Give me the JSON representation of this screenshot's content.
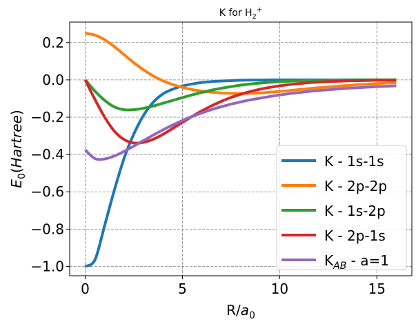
{
  "chart_data": {
    "type": "line",
    "title_main": "K for H",
    "title_sub": "2",
    "title_sup": "+",
    "xlabel_main": "R/",
    "xlabel_var": "a",
    "xlabel_sub": "0",
    "ylabel_var": "E",
    "ylabel_sub": "0",
    "ylabel_paren_open": "(",
    "ylabel_unit": "Hartree",
    "ylabel_paren_close": ")",
    "xlim": [
      -0.8,
      16.8
    ],
    "ylim": [
      -1.05,
      0.31
    ],
    "grid": true,
    "legend_position": "lower-right",
    "xticks": [
      0,
      5,
      10,
      15
    ],
    "xtick_labels": [
      "0",
      "5",
      "10",
      "15"
    ],
    "yticks": [
      -1.0,
      -0.8,
      -0.6,
      -0.4,
      -0.2,
      0.0,
      0.2
    ],
    "ytick_labels": [
      "−1.0",
      "−0.8",
      "−0.6",
      "−0.4",
      "−0.2",
      "0.0",
      "0.2"
    ],
    "x": [
      0,
      0.5,
      1,
      1.5,
      2,
      2.5,
      3,
      3.5,
      4,
      4.5,
      5,
      5.5,
      6,
      6.5,
      7,
      7.5,
      8,
      8.5,
      9,
      9.5,
      10,
      10.5,
      11,
      11.5,
      12,
      12.5,
      13,
      13.5,
      14,
      14.5,
      15,
      15.5,
      16
    ],
    "series": [
      {
        "name": "K - 1s-1s",
        "legend_main": "K - 1s-1s",
        "legend_sub": "",
        "legend_suffix": "",
        "color": "#1f77b4",
        "values": [
          -1.0,
          -0.965,
          -0.78,
          -0.59,
          -0.42,
          -0.29,
          -0.19,
          -0.12,
          -0.075,
          -0.05,
          -0.033,
          -0.022,
          -0.014,
          -0.009,
          -0.006,
          -0.004,
          -0.002,
          -0.001,
          -0.001,
          0.0,
          0.0,
          0.0,
          0.0,
          0.0,
          0.0,
          0.0,
          0.0,
          0.0,
          0.0,
          0.0,
          0.0,
          0.0,
          0.0
        ]
      },
      {
        "name": "K - 2p-2p",
        "legend_main": "K - 2p-2p",
        "legend_sub": "",
        "legend_suffix": "",
        "color": "#ff7f0e",
        "values": [
          0.25,
          0.24,
          0.215,
          0.178,
          0.135,
          0.092,
          0.054,
          0.021,
          -0.005,
          -0.025,
          -0.04,
          -0.052,
          -0.06,
          -0.066,
          -0.07,
          -0.072,
          -0.073,
          -0.072,
          -0.07,
          -0.066,
          -0.062,
          -0.057,
          -0.052,
          -0.047,
          -0.042,
          -0.038,
          -0.034,
          -0.03,
          -0.026,
          -0.023,
          -0.02,
          -0.017,
          -0.015
        ]
      },
      {
        "name": "K - 1s-2p",
        "legend_main": "K - 1s-2p",
        "legend_sub": "",
        "legend_suffix": "",
        "color": "#2ca02c",
        "values": [
          0.0,
          -0.06,
          -0.11,
          -0.145,
          -0.16,
          -0.16,
          -0.152,
          -0.14,
          -0.125,
          -0.11,
          -0.095,
          -0.08,
          -0.067,
          -0.055,
          -0.045,
          -0.036,
          -0.028,
          -0.022,
          -0.017,
          -0.013,
          -0.01,
          -0.007,
          -0.005,
          -0.004,
          -0.003,
          -0.002,
          -0.001,
          -0.001,
          0.0,
          0.0,
          0.0,
          0.0,
          0.0
        ]
      },
      {
        "name": "K - 2p-1s",
        "legend_main": "K - 2p-1s",
        "legend_sub": "",
        "legend_suffix": "",
        "color": "#d62728",
        "values": [
          0.0,
          -0.105,
          -0.2,
          -0.275,
          -0.32,
          -0.338,
          -0.335,
          -0.318,
          -0.292,
          -0.26,
          -0.228,
          -0.196,
          -0.166,
          -0.139,
          -0.115,
          -0.094,
          -0.077,
          -0.062,
          -0.05,
          -0.04,
          -0.032,
          -0.025,
          -0.02,
          -0.015,
          -0.012,
          -0.009,
          -0.007,
          -0.005,
          -0.004,
          -0.003,
          -0.002,
          -0.002,
          -0.001
        ]
      },
      {
        "name": "K_AB - a=1",
        "legend_main": "K",
        "legend_sub": "AB",
        "legend_suffix": " - a=1",
        "color": "#9467bd",
        "values": [
          -0.375,
          -0.422,
          -0.424,
          -0.408,
          -0.383,
          -0.355,
          -0.325,
          -0.296,
          -0.268,
          -0.242,
          -0.218,
          -0.196,
          -0.177,
          -0.159,
          -0.144,
          -0.13,
          -0.118,
          -0.107,
          -0.098,
          -0.089,
          -0.081,
          -0.074,
          -0.068,
          -0.062,
          -0.057,
          -0.053,
          -0.049,
          -0.045,
          -0.042,
          -0.039,
          -0.036,
          -0.034,
          -0.032
        ]
      }
    ]
  }
}
